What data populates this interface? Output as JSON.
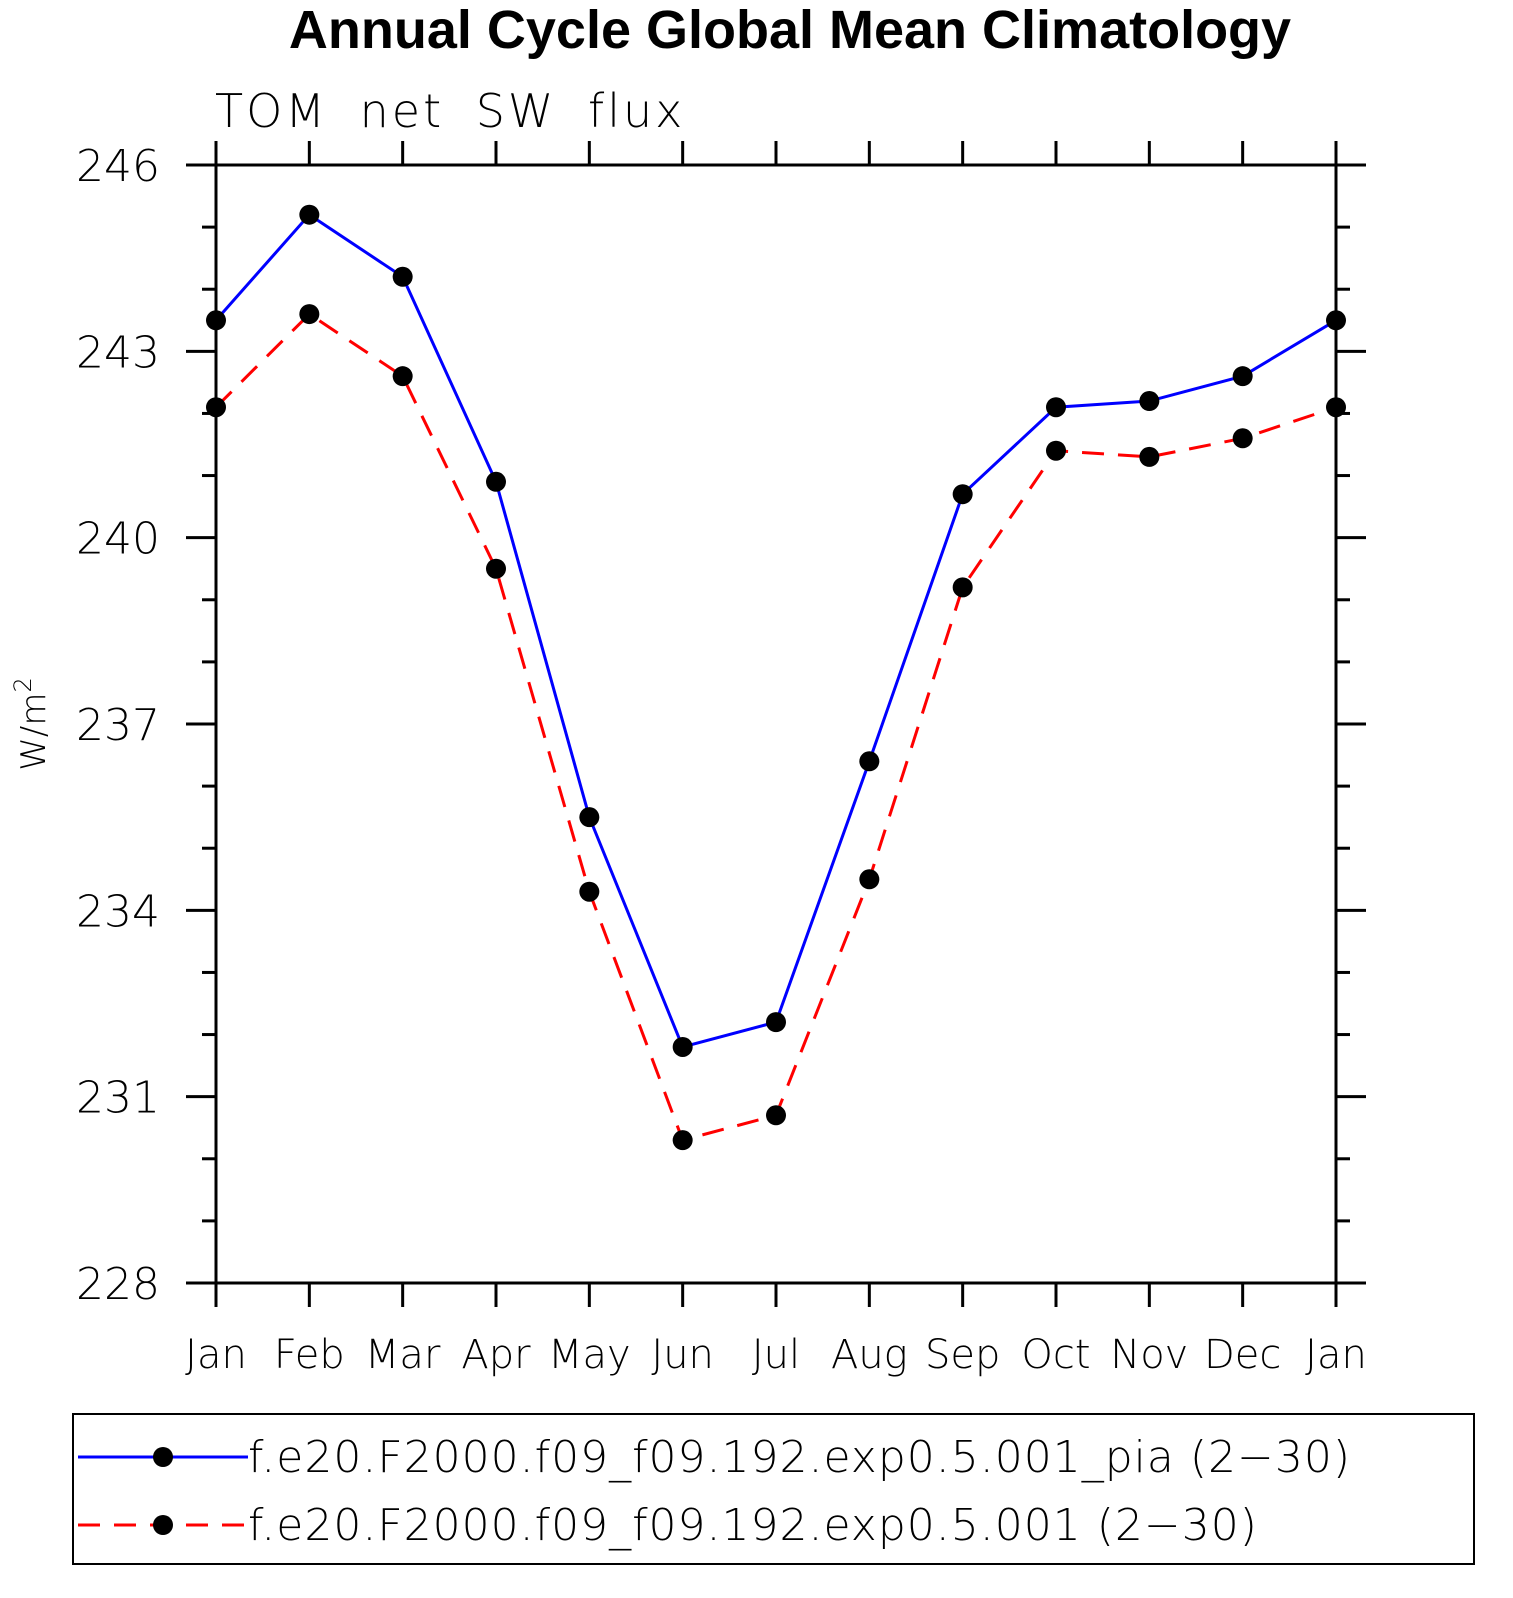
{
  "chart_data": {
    "type": "line",
    "title": "Annual Cycle Global Mean Climatology",
    "subtitle": "TOM net SW flux",
    "xlabel": "",
    "ylabel": "W/m2",
    "ylabel_main": "W/m",
    "ylabel_sup": "2",
    "categories": [
      "Jan",
      "Feb",
      "Mar",
      "Apr",
      "May",
      "Jun",
      "Jul",
      "Aug",
      "Sep",
      "Oct",
      "Nov",
      "Dec",
      "Jan"
    ],
    "ylim": [
      228,
      246
    ],
    "yticks": [
      228,
      231,
      234,
      237,
      240,
      243,
      246
    ],
    "ytick_labels": [
      "228",
      "231",
      "234",
      "237",
      "240",
      "243",
      "246"
    ],
    "grid": false,
    "legend_position": "bottom",
    "series": [
      {
        "name": "f.e20.F2000.f09_f09.192.exp0.5.001_pia (2−30)",
        "color": "#0000ff",
        "line_style": "solid",
        "marker": "filled-circle",
        "values": [
          243.5,
          245.2,
          244.2,
          240.9,
          235.5,
          231.8,
          232.2,
          236.4,
          240.7,
          242.1,
          242.2,
          242.6,
          243.5
        ]
      },
      {
        "name": "f.e20.F2000.f09_f09.192.exp0.5.001 (2−30)",
        "color": "#ff0000",
        "line_style": "dashed",
        "marker": "filled-circle",
        "values": [
          242.1,
          243.6,
          242.6,
          239.5,
          234.3,
          230.3,
          230.7,
          234.5,
          239.2,
          241.4,
          241.3,
          241.6,
          242.1
        ]
      }
    ]
  }
}
